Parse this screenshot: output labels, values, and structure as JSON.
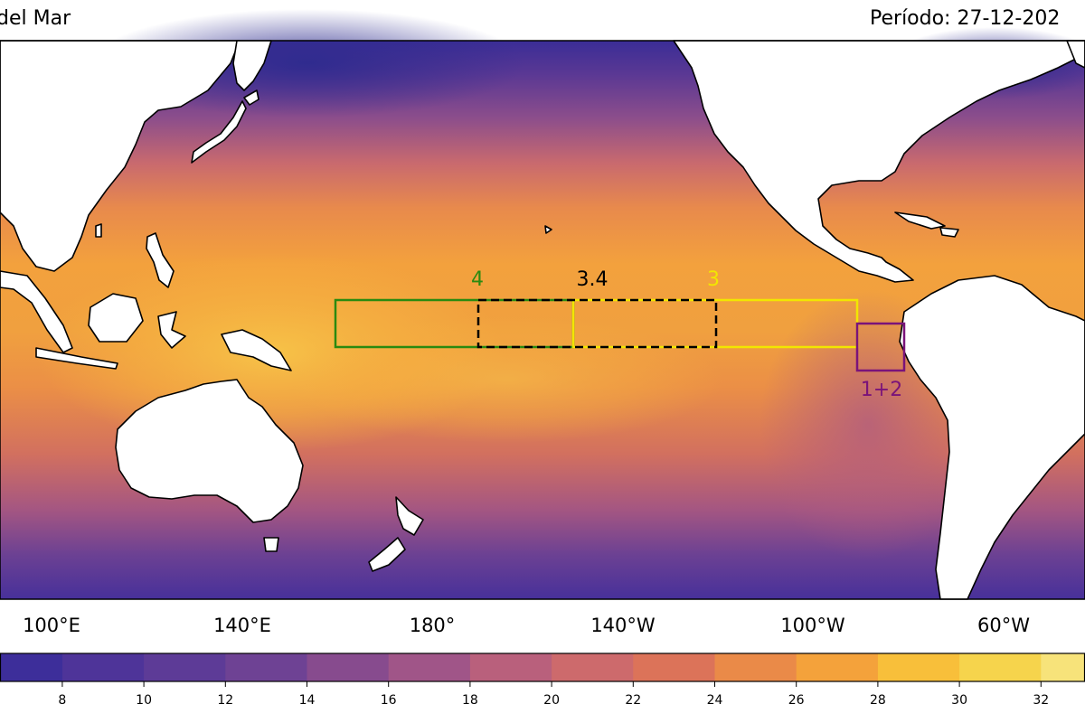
{
  "title": {
    "left": "del Mar",
    "right": "Período: 27-12-202"
  },
  "longitude_labels": [
    "100°E",
    "140°E",
    "180°",
    "140°W",
    "100°W",
    "60°W"
  ],
  "regions": [
    {
      "name": "4",
      "color": "#2a8a10",
      "style": "solid"
    },
    {
      "name": "3.4",
      "color": "#000000",
      "style": "dashed"
    },
    {
      "name": "3",
      "color": "#f2e600",
      "style": "solid"
    },
    {
      "name": "1+2",
      "color": "#7a137a",
      "style": "solid"
    }
  ],
  "colorbar": {
    "ticks": [
      "8",
      "10",
      "12",
      "14",
      "16",
      "18",
      "20",
      "22",
      "24",
      "26",
      "28",
      "30",
      "32"
    ],
    "colors": [
      "#3d2e9a",
      "#4e3499",
      "#5d3b97",
      "#6e4294",
      "#874b8e",
      "#a05588",
      "#b9607c",
      "#cd6a6c",
      "#dc7359",
      "#ea8a48",
      "#f4a23b",
      "#f8bf3a",
      "#f6d44c",
      "#f7e37a"
    ]
  }
}
